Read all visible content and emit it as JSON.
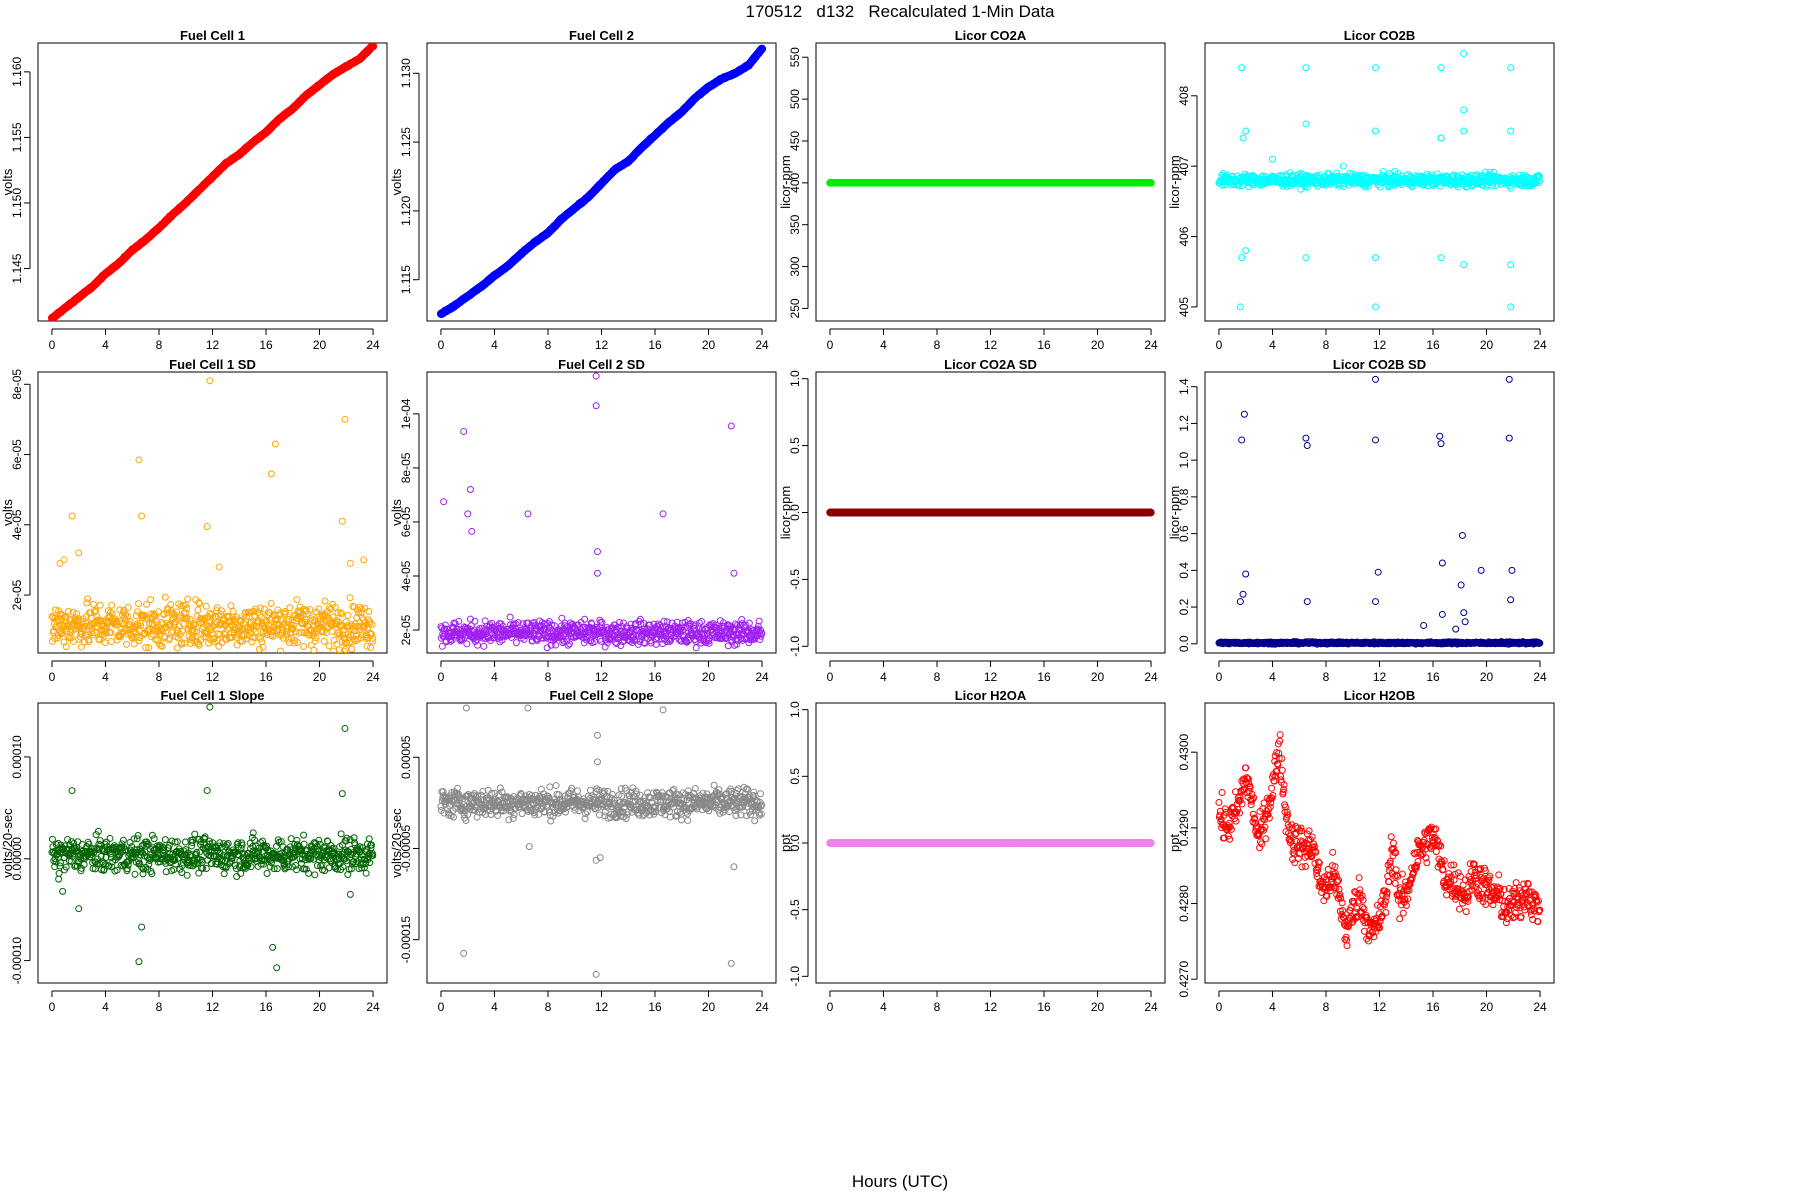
{
  "header": {
    "title": "170512   d132   Recalculated 1-Min Data",
    "x_axis_title": "Hours (UTC)"
  },
  "chart_data": [
    {
      "type": "scatter",
      "title": "Fuel Cell 1",
      "ylabel": "volts",
      "color": "#ff0000",
      "xlim": [
        0,
        24
      ],
      "ylim": [
        1.141,
        1.1622
      ],
      "xticks": [
        0,
        4,
        8,
        12,
        16,
        20,
        24
      ],
      "yticks": [
        {
          "v": 1.145,
          "label": "1.145"
        },
        {
          "v": 1.15,
          "label": "1.150"
        },
        {
          "v": 1.155,
          "label": "1.155"
        },
        {
          "v": 1.16,
          "label": "1.160"
        }
      ],
      "pattern": "ramp",
      "x": [
        0,
        1,
        2,
        3,
        4,
        5,
        6,
        7,
        8,
        9,
        10,
        11,
        12,
        13,
        14,
        15,
        16,
        17,
        18,
        19,
        20,
        21,
        22,
        23,
        24
      ],
      "y": [
        1.1412,
        1.142,
        1.1428,
        1.1436,
        1.1446,
        1.1454,
        1.1464,
        1.1472,
        1.1481,
        1.1491,
        1.15,
        1.151,
        1.152,
        1.153,
        1.1537,
        1.1546,
        1.1554,
        1.1564,
        1.1572,
        1.1582,
        1.159,
        1.1598,
        1.1604,
        1.161,
        1.162
      ]
    },
    {
      "type": "scatter",
      "title": "Fuel Cell 2",
      "ylabel": "volts",
      "color": "#0000ff",
      "xlim": [
        0,
        24
      ],
      "ylim": [
        1.112,
        1.1322
      ],
      "xticks": [
        0,
        4,
        8,
        12,
        16,
        20,
        24
      ],
      "yticks": [
        {
          "v": 1.115,
          "label": "1.115"
        },
        {
          "v": 1.12,
          "label": "1.120"
        },
        {
          "v": 1.125,
          "label": "1.125"
        },
        {
          "v": 1.13,
          "label": "1.130"
        }
      ],
      "pattern": "ramp",
      "x": [
        0,
        1,
        2,
        3,
        4,
        5,
        6,
        7,
        8,
        9,
        10,
        11,
        12,
        13,
        14,
        15,
        16,
        17,
        18,
        19,
        20,
        21,
        22,
        23,
        24
      ],
      "y": [
        1.1125,
        1.1131,
        1.1138,
        1.1145,
        1.1153,
        1.116,
        1.1169,
        1.1177,
        1.1184,
        1.1194,
        1.1202,
        1.121,
        1.122,
        1.123,
        1.1236,
        1.1246,
        1.1255,
        1.1264,
        1.1272,
        1.1282,
        1.129,
        1.1296,
        1.13,
        1.1306,
        1.1318
      ]
    },
    {
      "type": "scatter",
      "title": "Licor CO2A",
      "ylabel": "licor-ppm",
      "color": "#00ee00",
      "xlim": [
        0,
        24
      ],
      "ylim": [
        235,
        567
      ],
      "xticks": [
        0,
        4,
        8,
        12,
        16,
        20,
        24
      ],
      "yticks": [
        {
          "v": 250,
          "label": "250"
        },
        {
          "v": 300,
          "label": "300"
        },
        {
          "v": 350,
          "label": "350"
        },
        {
          "v": 400,
          "label": "400"
        },
        {
          "v": 450,
          "label": "450"
        },
        {
          "v": 500,
          "label": "500"
        },
        {
          "v": 550,
          "label": "550"
        }
      ],
      "pattern": "flat",
      "x": [
        0,
        24
      ],
      "y": [
        400,
        400
      ]
    },
    {
      "type": "scatter",
      "title": "Licor CO2B",
      "ylabel": "licor-ppm",
      "color": "#00ffff",
      "xlim": [
        0,
        24
      ],
      "ylim": [
        404.8,
        408.75
      ],
      "xticks": [
        0,
        4,
        8,
        12,
        16,
        20,
        24
      ],
      "yticks": [
        {
          "v": 405,
          "label": "405"
        },
        {
          "v": 406,
          "label": "406"
        },
        {
          "v": 407,
          "label": "407"
        },
        {
          "v": 408,
          "label": "408"
        }
      ],
      "pattern": "noise",
      "base": 406.8,
      "noise": 0.06,
      "x": [
        1.7,
        1.8,
        2.0,
        1.7,
        2.0,
        1.6,
        6.5,
        6.5,
        6.5,
        11.7,
        11.7,
        11.7,
        11.7,
        16.6,
        16.6,
        16.6,
        16.6,
        18.3,
        18.3,
        18.3,
        21.8,
        21.8,
        21.8,
        21.8,
        4.0,
        9.3,
        18.3
      ],
      "y": [
        408.4,
        407.4,
        407.5,
        405.7,
        405.8,
        405.0,
        408.4,
        407.6,
        405.7,
        408.4,
        407.5,
        405.7,
        405.0,
        408.4,
        407.4,
        405.7,
        407.4,
        408.6,
        407.8,
        405.6,
        408.4,
        407.5,
        405.6,
        405.0,
        407.1,
        407.0,
        407.5
      ]
    },
    {
      "type": "scatter",
      "title": "Fuel Cell 1 SD",
      "ylabel": "volts",
      "color": "#ffa500",
      "xlim": [
        0,
        24
      ],
      "ylim": [
        3.5e-06,
        8.35e-05
      ],
      "xticks": [
        0,
        4,
        8,
        12,
        16,
        20,
        24
      ],
      "yticks": [
        {
          "v": 2e-05,
          "label": "2e-05"
        },
        {
          "v": 4e-05,
          "label": "4e-05"
        },
        {
          "v": 6e-05,
          "label": "6e-05"
        },
        {
          "v": 8e-05,
          "label": "8e-05"
        }
      ],
      "pattern": "noise",
      "base": 1.15e-05,
      "noise": 4.5e-06,
      "x": [
        0.6,
        0.9,
        1.5,
        2.0,
        6.5,
        6.7,
        11.6,
        11.8,
        12.5,
        16.4,
        16.7,
        21.7,
        21.9,
        22.3,
        23.3
      ],
      "y": [
        2.9e-05,
        3e-05,
        4.25e-05,
        3.2e-05,
        5.85e-05,
        4.25e-05,
        3.95e-05,
        8.1e-05,
        2.8e-05,
        5.45e-05,
        6.3e-05,
        4.1e-05,
        7e-05,
        2.9e-05,
        3e-05
      ]
    },
    {
      "type": "scatter",
      "title": "Fuel Cell 2 SD",
      "ylabel": "volts",
      "color": "#a020f0",
      "xlim": [
        0,
        24
      ],
      "ylim": [
        1.15e-05,
        0.0001155
      ],
      "xticks": [
        0,
        4,
        8,
        12,
        16,
        20,
        24
      ],
      "yticks": [
        {
          "v": 2e-05,
          "label": "2e-05"
        },
        {
          "v": 4e-05,
          "label": "4e-05"
        },
        {
          "v": 6e-05,
          "label": "6e-05"
        },
        {
          "v": 8e-05,
          "label": "8e-05"
        },
        {
          "v": 0.0001,
          "label": "1e-04"
        }
      ],
      "pattern": "noise",
      "base": 1.9e-05,
      "noise": 3e-06,
      "x": [
        0.2,
        1.7,
        2.0,
        2.2,
        2.3,
        6.5,
        11.6,
        11.6,
        11.7,
        11.7,
        16.6,
        21.7,
        21.9
      ],
      "y": [
        6.75e-05,
        9.35e-05,
        6.3e-05,
        7.2e-05,
        5.65e-05,
        6.3e-05,
        0.000103,
        0.000114,
        4.9e-05,
        4.1e-05,
        6.3e-05,
        9.55e-05,
        4.1e-05
      ]
    },
    {
      "type": "scatter",
      "title": "Licor CO2A SD",
      "ylabel": "licor-ppm",
      "color": "#8b0000",
      "xlim": [
        0,
        24
      ],
      "ylim": [
        -1.05,
        1.05
      ],
      "xticks": [
        0,
        4,
        8,
        12,
        16,
        20,
        24
      ],
      "yticks": [
        {
          "v": -1.0,
          "label": "-1.0"
        },
        {
          "v": -0.5,
          "label": "-0.5"
        },
        {
          "v": 0.0,
          "label": "0.0"
        },
        {
          "v": 0.5,
          "label": "0.5"
        },
        {
          "v": 1.0,
          "label": "1.0"
        }
      ],
      "pattern": "flat",
      "x": [
        0,
        24
      ],
      "y": [
        0,
        0
      ]
    },
    {
      "type": "scatter",
      "title": "Licor CO2B SD",
      "ylabel": "licor-ppm",
      "color": "#00008b",
      "xlim": [
        0,
        24
      ],
      "ylim": [
        -0.05,
        1.48
      ],
      "xticks": [
        0,
        4,
        8,
        12,
        16,
        20,
        24
      ],
      "yticks": [
        {
          "v": 0.0,
          "label": "0.0"
        },
        {
          "v": 0.2,
          "label": "0.2"
        },
        {
          "v": 0.4,
          "label": "0.4"
        },
        {
          "v": 0.6,
          "label": "0.6"
        },
        {
          "v": 0.8,
          "label": "0.8"
        },
        {
          "v": 1.0,
          "label": "1.0"
        },
        {
          "v": 1.2,
          "label": "1.2"
        },
        {
          "v": 1.4,
          "label": "1.4"
        }
      ],
      "pattern": "noise",
      "base": 0.005,
      "noise": 0.004,
      "x": [
        1.7,
        1.9,
        1.6,
        1.8,
        2.0,
        6.5,
        6.6,
        6.6,
        11.7,
        11.7,
        11.9,
        11.7,
        16.5,
        16.6,
        16.7,
        16.7,
        18.2,
        18.1,
        18.3,
        19.6,
        21.7,
        21.7,
        21.9,
        21.8,
        15.3,
        17.7,
        18.4
      ],
      "y": [
        1.11,
        1.25,
        0.23,
        0.27,
        0.38,
        1.12,
        1.08,
        0.23,
        1.44,
        1.11,
        0.39,
        0.23,
        1.13,
        1.09,
        0.44,
        0.16,
        0.59,
        0.32,
        0.17,
        0.4,
        1.12,
        1.44,
        0.4,
        0.24,
        0.1,
        0.08,
        0.12
      ]
    },
    {
      "type": "scatter",
      "title": "Fuel Cell 1 Slope",
      "ylabel": "volts/20-sec",
      "color": "#006400",
      "xlim": [
        0,
        24
      ],
      "ylim": [
        -0.000122,
        0.000153
      ],
      "xticks": [
        0,
        4,
        8,
        12,
        16,
        20,
        24
      ],
      "yticks": [
        {
          "v": -0.0001,
          "label": "-0.00010"
        },
        {
          "v": 0.0,
          "label": "0.00000"
        },
        {
          "v": 0.0001,
          "label": "0.00010"
        }
      ],
      "pattern": "noise",
      "base": 4e-06,
      "noise": 1.2e-05,
      "x": [
        1.5,
        2.0,
        6.5,
        6.7,
        11.6,
        11.8,
        16.5,
        16.8,
        21.7,
        21.9,
        22.3,
        0.8,
        0.5
      ],
      "y": [
        6.7e-05,
        -4.9e-05,
        -0.000101,
        -6.7e-05,
        6.7e-05,
        0.000149,
        -8.7e-05,
        -0.000107,
        6.4e-05,
        0.000128,
        -3.5e-05,
        -3.2e-05,
        -2e-05
      ]
    },
    {
      "type": "scatter",
      "title": "Fuel Cell 2 Slope",
      "ylabel": "volts/20-sec",
      "color": "#888888",
      "xlim": [
        0,
        24
      ],
      "ylim": [
        -0.0001975,
        0.0001095
      ],
      "xticks": [
        0,
        4,
        8,
        12,
        16,
        20,
        24
      ],
      "yticks": [
        {
          "v": -0.00015,
          "label": "-0.00015"
        },
        {
          "v": -5e-05,
          "label": "-0.00005"
        },
        {
          "v": 5e-05,
          "label": "0.00005"
        }
      ],
      "pattern": "noise",
      "base": 0.0,
      "noise": 1.1e-05,
      "x": [
        1.7,
        1.9,
        6.5,
        6.6,
        11.6,
        11.7,
        11.7,
        11.6,
        11.9,
        16.6,
        21.7,
        21.9
      ],
      "y": [
        -0.000165,
        0.000104,
        0.000104,
        -4.8e-05,
        -0.000188,
        7.4e-05,
        4.5e-05,
        -6.3e-05,
        -6e-05,
        0.000102,
        -0.000176,
        -7e-05
      ]
    },
    {
      "type": "scatter",
      "title": "Licor H2OA",
      "ylabel": "ppt",
      "color": "#ee82ee",
      "xlim": [
        0,
        24
      ],
      "ylim": [
        -1.05,
        1.05
      ],
      "xticks": [
        0,
        4,
        8,
        12,
        16,
        20,
        24
      ],
      "yticks": [
        {
          "v": -1.0,
          "label": "-1.0"
        },
        {
          "v": -0.5,
          "label": "-0.5"
        },
        {
          "v": 0.0,
          "label": "0.0"
        },
        {
          "v": 0.5,
          "label": "0.5"
        },
        {
          "v": 1.0,
          "label": "1.0"
        }
      ],
      "pattern": "flat",
      "x": [
        0,
        24
      ],
      "y": [
        0,
        0
      ]
    },
    {
      "type": "scatter",
      "title": "Licor H2OB",
      "ylabel": "ppt",
      "color": "#ff0000",
      "xlim": [
        0,
        24
      ],
      "ylim": [
        0.42695,
        0.43065
      ],
      "xticks": [
        0,
        4,
        8,
        12,
        16,
        20,
        24
      ],
      "yticks": [
        {
          "v": 0.427,
          "label": "0.4270"
        },
        {
          "v": 0.428,
          "label": "0.4280"
        },
        {
          "v": 0.429,
          "label": "0.4290"
        },
        {
          "v": 0.43,
          "label": "0.4300"
        }
      ],
      "pattern": "wander",
      "noise": 0.00018,
      "x": [
        0,
        0.5,
        1,
        1.5,
        2,
        2.5,
        3,
        3.5,
        4,
        4.5,
        5,
        5.5,
        6,
        6.5,
        7,
        7.5,
        8,
        8.5,
        9,
        9.5,
        10,
        10.5,
        11,
        11.5,
        12,
        12.5,
        13,
        13.5,
        14,
        14.5,
        15,
        15.5,
        16,
        16.5,
        17,
        17.5,
        18,
        18.5,
        19,
        19.5,
        20,
        20.5,
        21,
        21.5,
        22,
        22.5,
        23,
        23.5,
        24
      ],
      "y": [
        0.4292,
        0.429,
        0.4291,
        0.4293,
        0.4297,
        0.4293,
        0.4288,
        0.4292,
        0.4295,
        0.4301,
        0.4292,
        0.4288,
        0.4288,
        0.4287,
        0.4288,
        0.4283,
        0.4282,
        0.4284,
        0.4281,
        0.4276,
        0.4279,
        0.4281,
        0.4278,
        0.4276,
        0.4278,
        0.4281,
        0.4288,
        0.428,
        0.4281,
        0.4285,
        0.4287,
        0.4288,
        0.4289,
        0.4286,
        0.4283,
        0.4283,
        0.4282,
        0.4281,
        0.4284,
        0.4283,
        0.4282,
        0.4281,
        0.4281,
        0.4279,
        0.428,
        0.428,
        0.4282,
        0.428,
        0.4279
      ]
    }
  ]
}
